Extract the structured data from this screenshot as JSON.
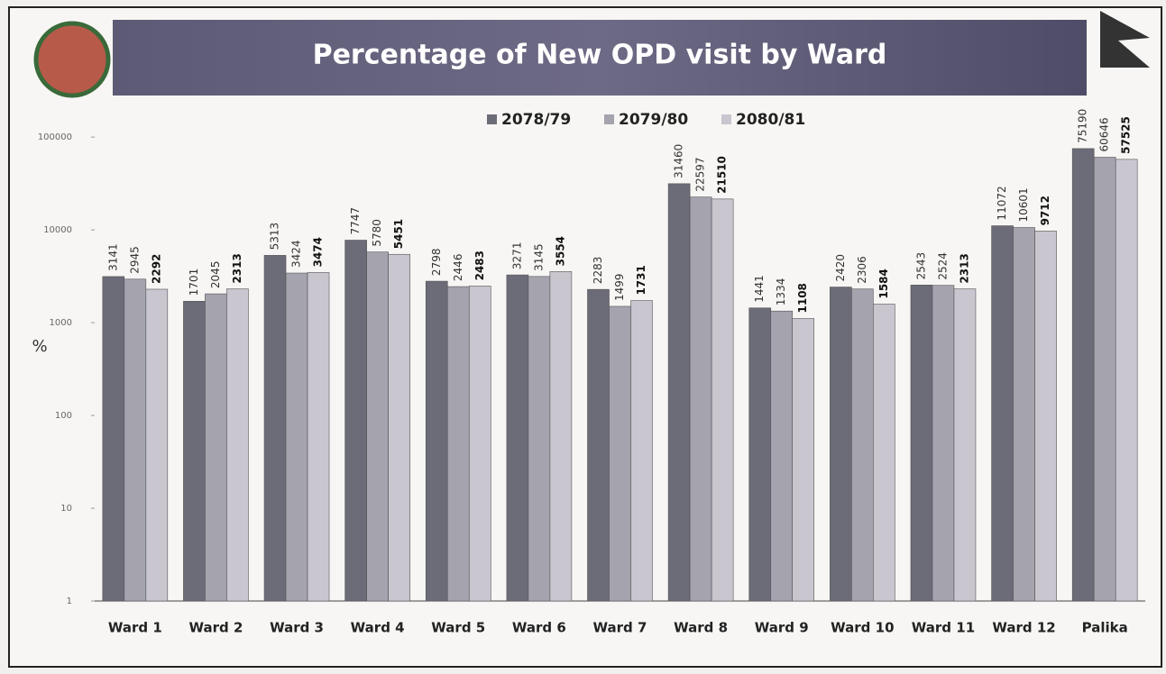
{
  "chart_data": {
    "type": "bar",
    "title": "Percentage of New OPD visit by Ward",
    "y_label": "%",
    "categories": [
      "Ward 1",
      "Ward 2",
      "Ward 3",
      "Ward 4",
      "Ward 5",
      "Ward 6",
      "Ward 7",
      "Ward 8",
      "Ward 9",
      "Ward 10",
      "Ward 11",
      "Ward 12",
      "Palika"
    ],
    "series": [
      {
        "name": "2078/79",
        "color": "#6c6b78",
        "values": [
          3141,
          1701,
          5313,
          7747,
          2798,
          3271,
          2283,
          31460,
          1441,
          2420,
          2543,
          11072,
          75190
        ]
      },
      {
        "name": "2079/80",
        "color": "#a4a3ae",
        "values": [
          2945,
          2045,
          3424,
          5780,
          2446,
          3145,
          1499,
          22597,
          1334,
          2306,
          2524,
          10601,
          60646
        ]
      },
      {
        "name": "2080/81",
        "color": "#c9c6cf",
        "values": [
          2292,
          2313,
          3474,
          5451,
          2483,
          3554,
          1731,
          21510,
          1108,
          1584,
          2313,
          9712,
          57525
        ]
      }
    ],
    "log_scale": true,
    "ylim": [
      1,
      150000
    ],
    "yticks": [
      1,
      10,
      100,
      1000,
      10000,
      100000
    ],
    "legend": "top"
  }
}
